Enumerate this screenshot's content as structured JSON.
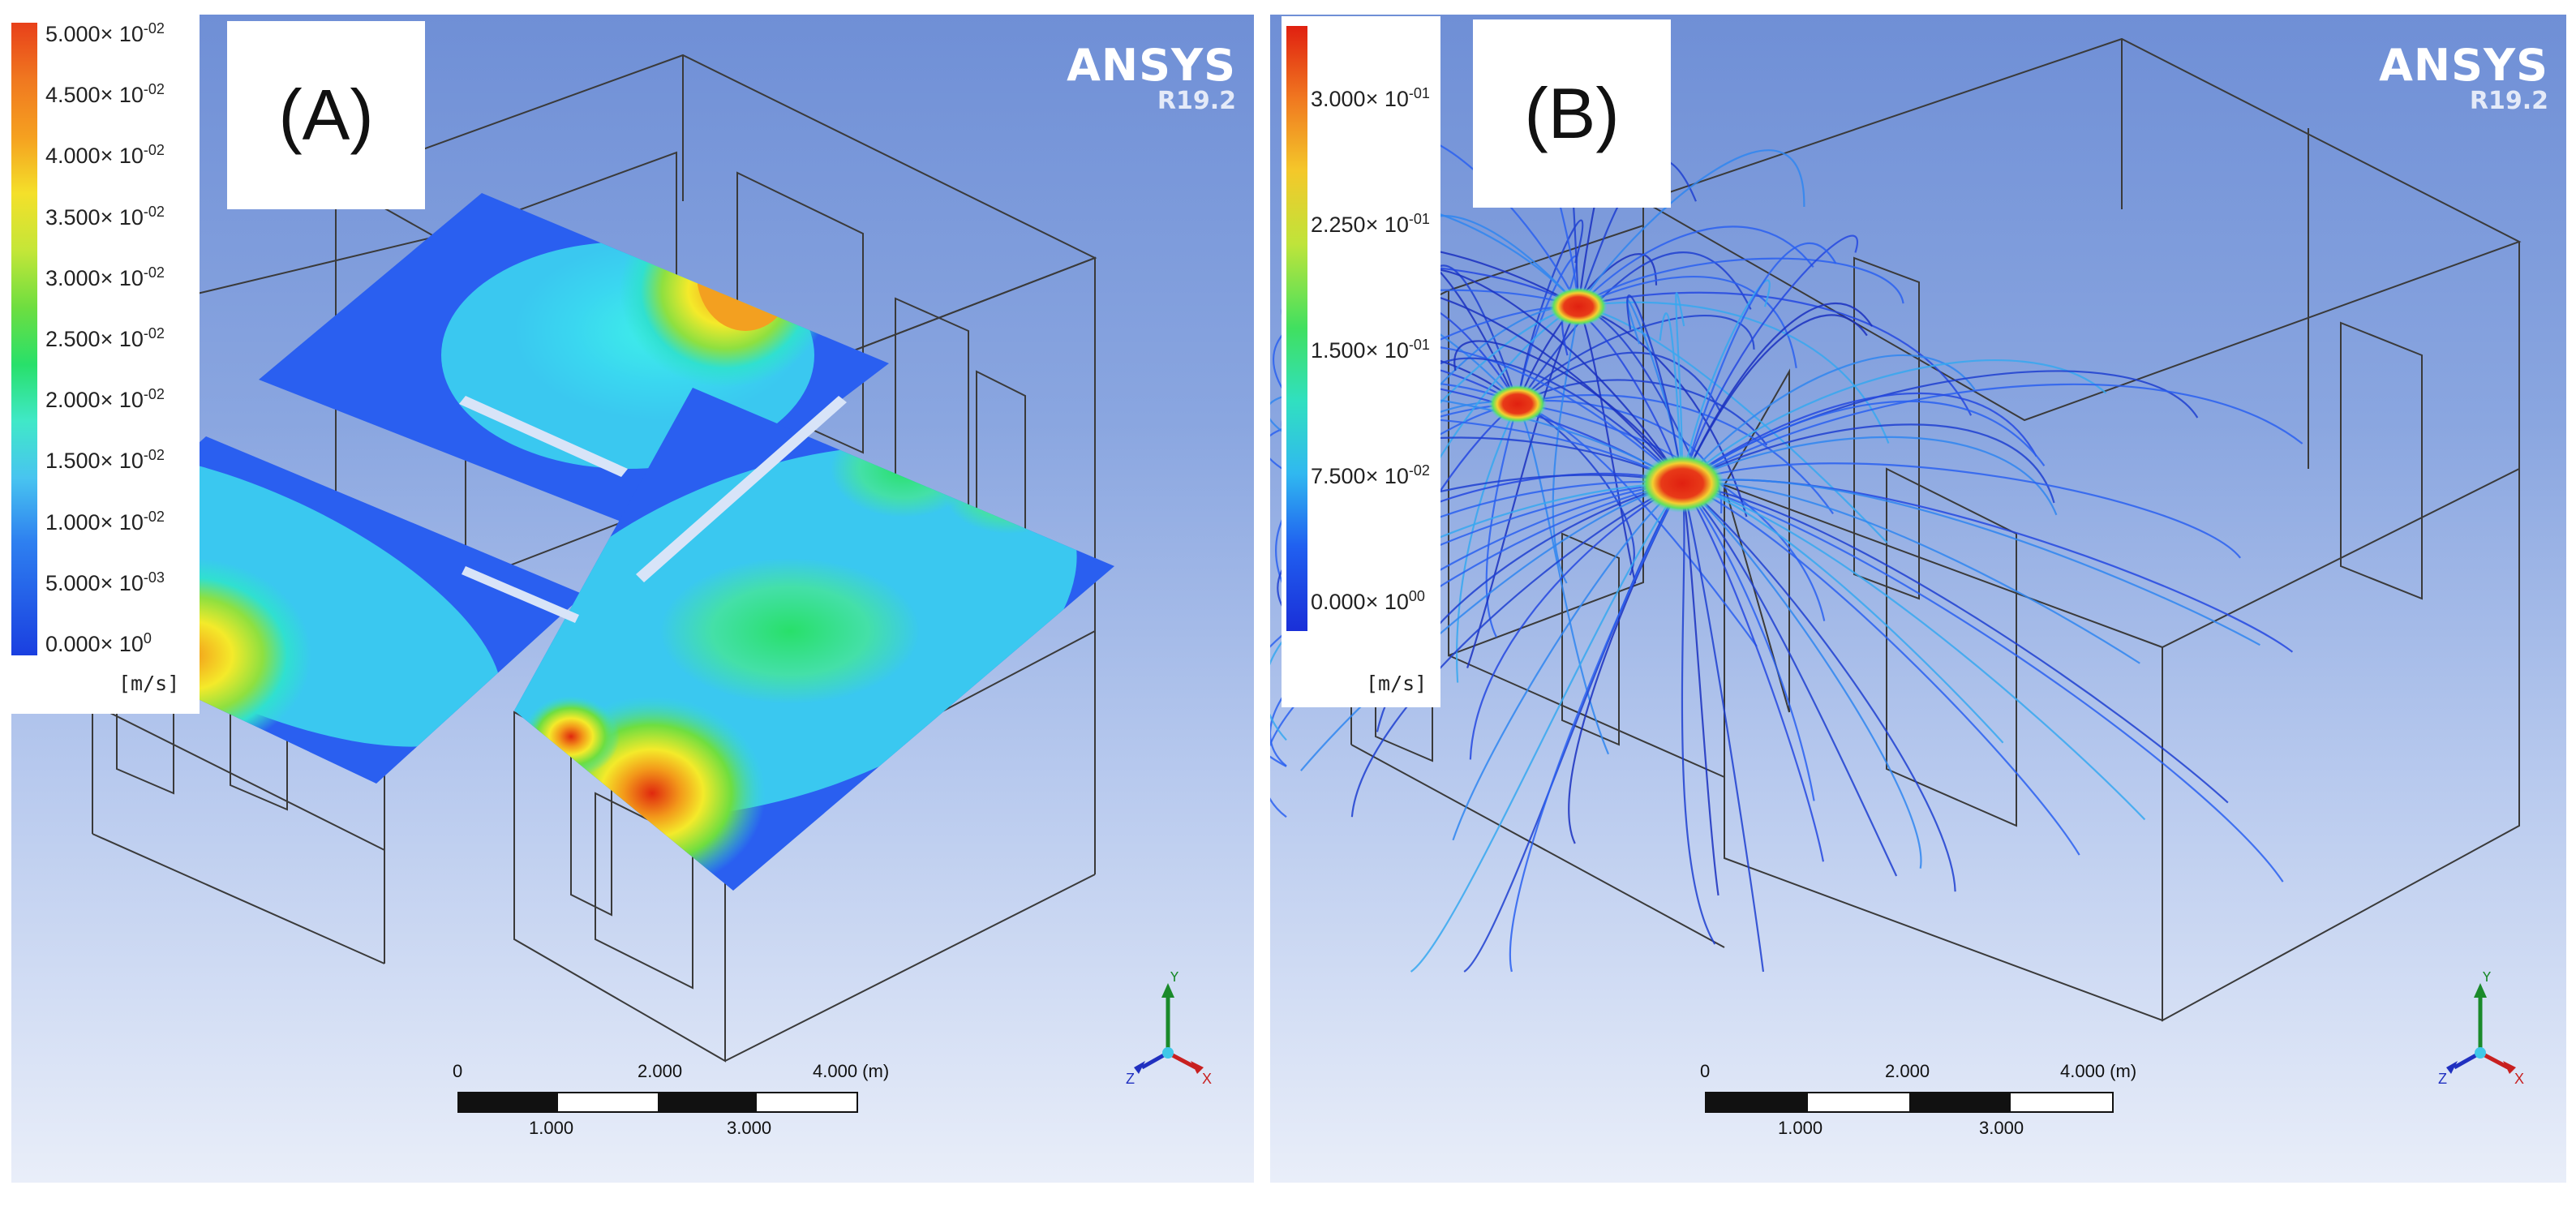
{
  "panels": [
    {
      "label": "(A)",
      "brand": {
        "name": "ANSYS",
        "version": "R19.2"
      },
      "legend": {
        "unit": "[m/s]",
        "ticks": [
          {
            "mant": "5.000×",
            "base": "10",
            "exp": "-02"
          },
          {
            "mant": "4.500×",
            "base": "10",
            "exp": "-02"
          },
          {
            "mant": "4.000×",
            "base": "10",
            "exp": "-02"
          },
          {
            "mant": "3.500×",
            "base": "10",
            "exp": "-02"
          },
          {
            "mant": "3.000×",
            "base": "10",
            "exp": "-02"
          },
          {
            "mant": "2.500×",
            "base": "10",
            "exp": "-02"
          },
          {
            "mant": "2.000×",
            "base": "10",
            "exp": "-02"
          },
          {
            "mant": "1.500×",
            "base": "10",
            "exp": "-02"
          },
          {
            "mant": "1.000×",
            "base": "10",
            "exp": "-02"
          },
          {
            "mant": "5.000×",
            "base": "10",
            "exp": "-03"
          },
          {
            "mant": "0.000×",
            "base": "10",
            "exp": "0"
          }
        ]
      },
      "scale": {
        "top": [
          "0",
          "2.000",
          "4.000 (m)"
        ],
        "bottom": [
          "1.000",
          "3.000"
        ]
      },
      "axes": {
        "y": "Y",
        "x": "X",
        "z": "Z"
      }
    },
    {
      "label": "(B)",
      "brand": {
        "name": "ANSYS",
        "version": "R19.2"
      },
      "legend": {
        "unit": "[m/s]",
        "ticks": [
          {
            "mant": "3.000×",
            "base": "10",
            "exp": "-01"
          },
          {
            "mant": "2.250×",
            "base": "10",
            "exp": "-01"
          },
          {
            "mant": "1.500×",
            "base": "10",
            "exp": "-01"
          },
          {
            "mant": "7.500×",
            "base": "10",
            "exp": "-02"
          },
          {
            "mant": "0.000×",
            "base": "10",
            "exp": "00"
          }
        ]
      },
      "scale": {
        "top": [
          "0",
          "2.000",
          "4.000 (m)"
        ],
        "bottom": [
          "1.000",
          "3.000"
        ]
      },
      "axes": {
        "y": "Y",
        "x": "X",
        "z": "Z"
      }
    }
  ],
  "colors": {
    "bg_top": "#6f8fd6",
    "bg_bottom": "#e9eef9",
    "contour_low": "#1a3fe0",
    "contour_high": "#e02010",
    "wireframe": "#333333",
    "streamline": "#1f3fd0"
  }
}
